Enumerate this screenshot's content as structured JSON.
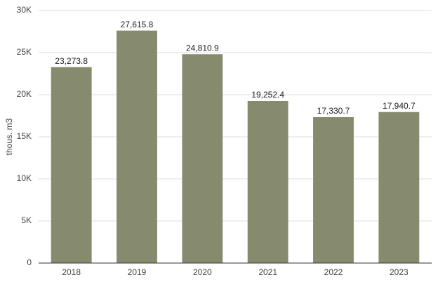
{
  "chart_data": {
    "type": "bar",
    "y_label": "thous. m3",
    "categories": [
      "2018",
      "2019",
      "2020",
      "2021",
      "2022",
      "2023"
    ],
    "values": [
      23273.8,
      27615.8,
      24810.9,
      19252.4,
      17330.7,
      17940.7
    ],
    "value_labels": [
      "23,273.8",
      "27,615.8",
      "24,810.9",
      "19,252.4",
      "17,330.7",
      "17,940.7"
    ],
    "color": "#878b6e",
    "ylim": [
      0,
      30000
    ],
    "yticks": [
      0,
      {
        "value": 5000,
        "label": "5K"
      },
      {
        "value": 10000,
        "label": "10K"
      },
      {
        "value": 15000,
        "label": "15K"
      },
      {
        "value": 20000,
        "label": "20K"
      },
      {
        "value": 25000,
        "label": "25K"
      },
      {
        "value": 30000,
        "label": "30K"
      }
    ],
    "grid": true
  }
}
